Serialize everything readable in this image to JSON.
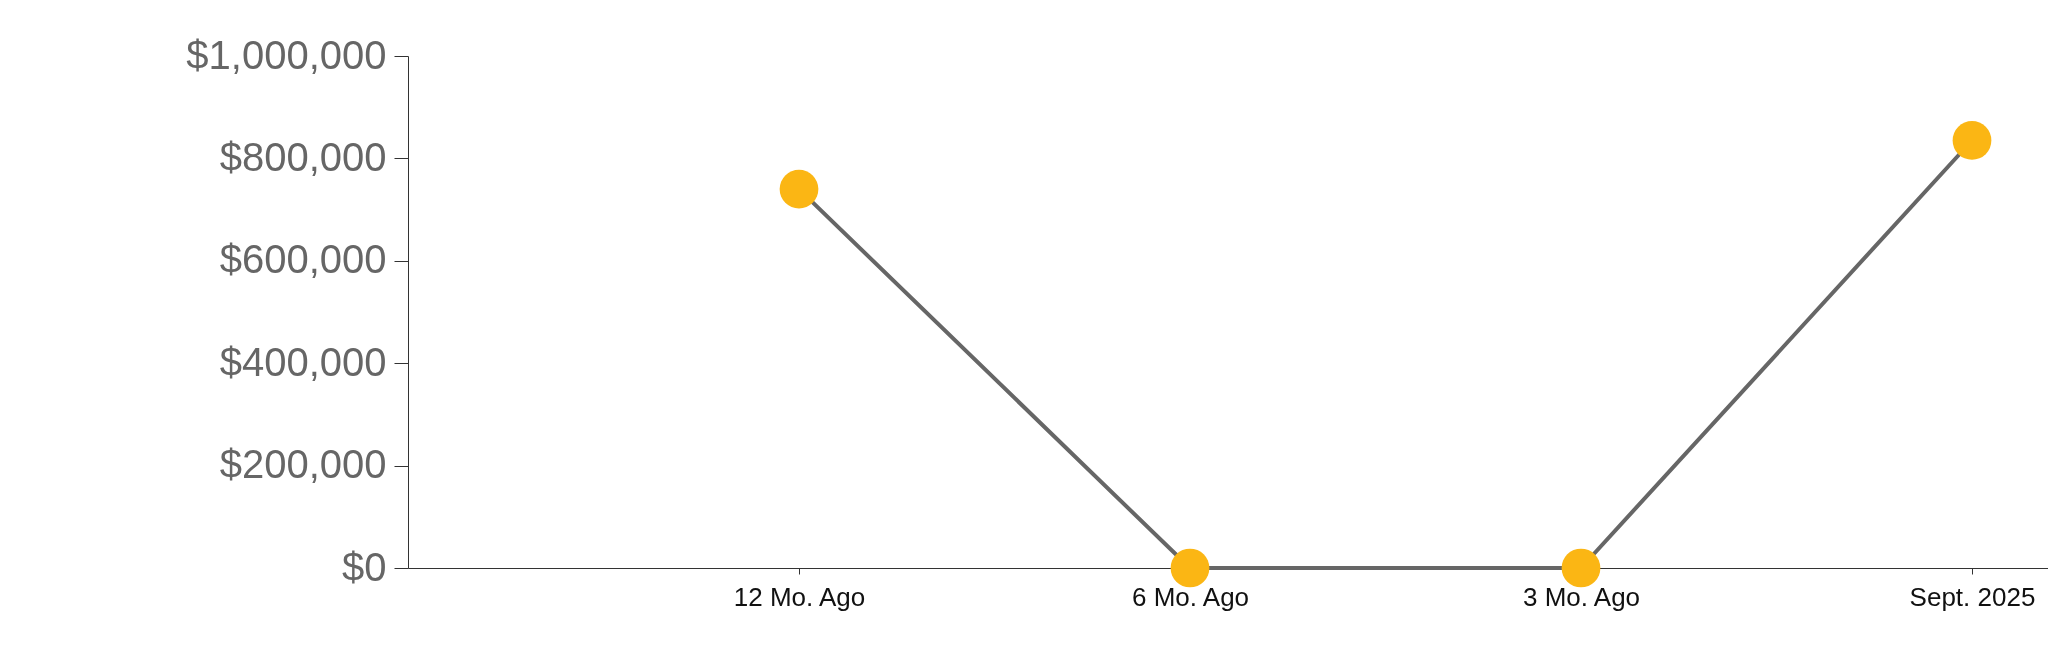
{
  "chart_data": {
    "type": "line",
    "categories": [
      null,
      "12 Mo. Ago",
      "6 Mo. Ago",
      "3 Mo. Ago",
      "Sept. 2025"
    ],
    "series": [
      {
        "color": "#666666",
        "colors": [
          null,
          "#fbb614",
          "#fbb614",
          "#fbb614",
          "#fbb614"
        ],
        "values": [
          null,
          740000,
          0,
          0,
          835000
        ]
      }
    ],
    "marker": "circle",
    "ylim": [
      0,
      1000000
    ],
    "yticks": [
      {
        "value": 0,
        "label": "$0"
      },
      {
        "value": 200000,
        "label": "$200,000"
      },
      {
        "value": 400000,
        "label": "$400,000"
      },
      {
        "value": 600000,
        "label": "$600,000"
      },
      {
        "value": 800000,
        "label": "$800,000"
      },
      {
        "value": 1000000,
        "label": "$1,000,000"
      }
    ],
    "grid": false
  }
}
